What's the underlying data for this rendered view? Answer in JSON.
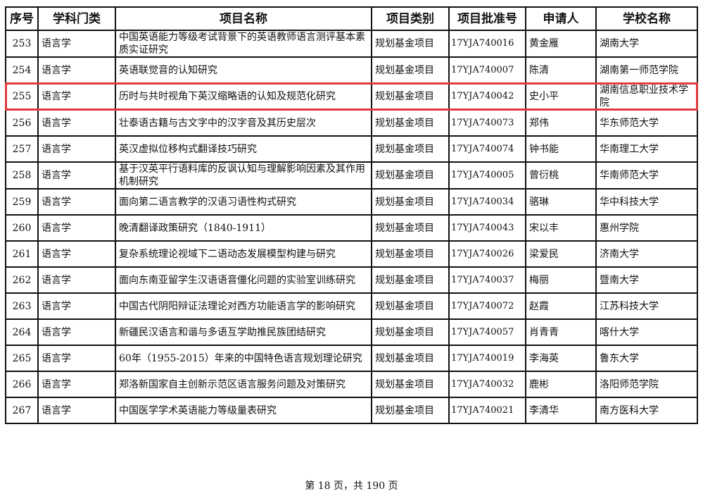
{
  "table": {
    "headers": [
      "序号",
      "学科门类",
      "项目名称",
      "项目类别",
      "项目批准号",
      "申请人",
      "学校名称"
    ],
    "highlight_color": "#e0393e",
    "highlighted_row": "255",
    "rows": [
      [
        "253",
        "语言学",
        "中国英语能力等级考试背景下的英语教师语言测评基本素质实证研究",
        "规划基金项目",
        "17YJA740016",
        "黄金雁",
        "湖南大学"
      ],
      [
        "254",
        "语言学",
        "英语联觉音的认知研究",
        "规划基金项目",
        "17YJA740007",
        "陈清",
        "湖南第一师范学院"
      ],
      [
        "255",
        "语言学",
        "历时与共时视角下英汉缩略语的认知及规范化研究",
        "规划基金项目",
        "17YJA740042",
        "史小平",
        "湖南信息职业技术学院"
      ],
      [
        "256",
        "语言学",
        "壮泰语古籍与古文字中的汉字音及其历史层次",
        "规划基金项目",
        "17YJA740073",
        "郑伟",
        "华东师范大学"
      ],
      [
        "257",
        "语言学",
        "英汉虚拟位移构式翻译技巧研究",
        "规划基金项目",
        "17YJA740074",
        "钟书能",
        "华南理工大学"
      ],
      [
        "258",
        "语言学",
        "基于汉英平行语料库的反讽认知与理解影响因素及其作用机制研究",
        "规划基金项目",
        "17YJA740005",
        "曾衍桃",
        "华南师范大学"
      ],
      [
        "259",
        "语言学",
        "面向第二语言教学的汉语习语性构式研究",
        "规划基金项目",
        "17YJA740034",
        "骆琳",
        "华中科技大学"
      ],
      [
        "260",
        "语言学",
        "晚清翻译政策研究（1840-1911）",
        "规划基金项目",
        "17YJA740043",
        "宋以丰",
        "惠州学院"
      ],
      [
        "261",
        "语言学",
        "复杂系统理论视域下二语动态发展模型构建与研究",
        "规划基金项目",
        "17YJA740026",
        "梁爱民",
        "济南大学"
      ],
      [
        "262",
        "语言学",
        "面向东南亚留学生汉语语音僵化问题的实验室训练研究",
        "规划基金项目",
        "17YJA740037",
        "梅丽",
        "暨南大学"
      ],
      [
        "263",
        "语言学",
        "中国古代阴阳辩证法理论对西方功能语言学的影响研究",
        "规划基金项目",
        "17YJA740072",
        "赵霞",
        "江苏科技大学"
      ],
      [
        "264",
        "语言学",
        "新疆民汉语言和谐与多语互学助推民族团结研究",
        "规划基金项目",
        "17YJA740057",
        "肖青青",
        "喀什大学"
      ],
      [
        "265",
        "语言学",
        "60年（1955-2015）年来的中国特色语言规划理论研究",
        "规划基金项目",
        "17YJA740019",
        "李海英",
        "鲁东大学"
      ],
      [
        "266",
        "语言学",
        "郑洛新国家自主创新示范区语言服务问题及对策研究",
        "规划基金项目",
        "17YJA740032",
        "鹿彬",
        "洛阳师范学院"
      ],
      [
        "267",
        "语言学",
        "中国医学学术英语能力等级量表研究",
        "规划基金项目",
        "17YJA740021",
        "李清华",
        "南方医科大学"
      ]
    ]
  },
  "footer": {
    "page_text": "第 18 页，共 190 页"
  }
}
